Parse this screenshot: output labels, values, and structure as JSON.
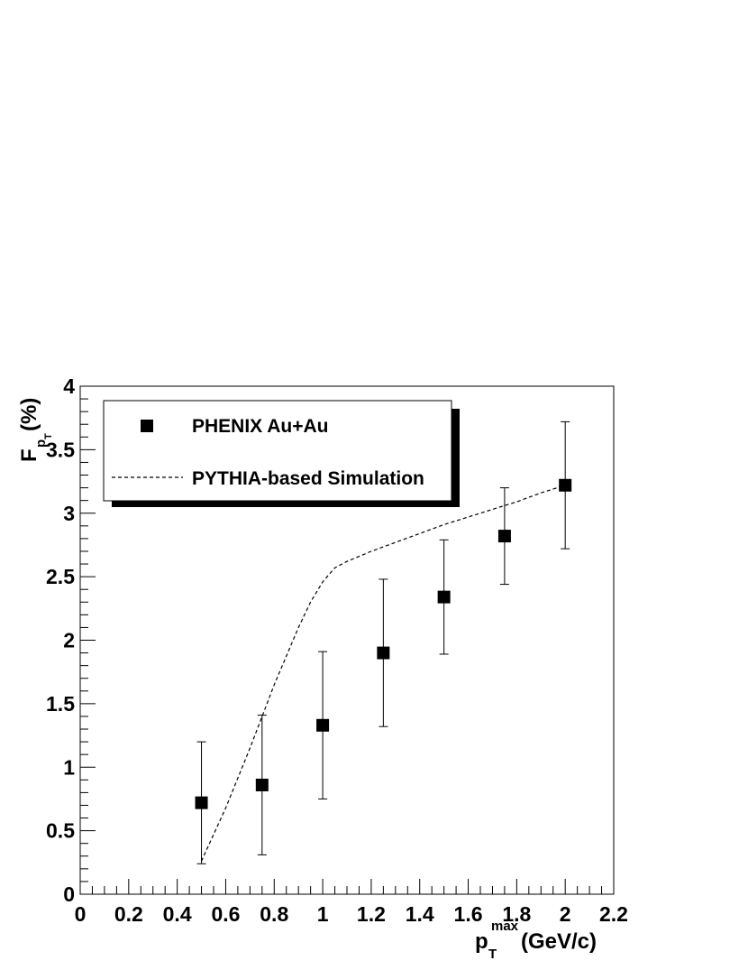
{
  "chart_data": {
    "type": "scatter",
    "x_axis": {
      "title_main": "p",
      "title_sub": "T",
      "title_sup": "max",
      "title_unit": " (GeV/c)",
      "range": [
        0,
        2.2
      ],
      "tick_labels": [
        "0",
        "0.2",
        "0.4",
        "0.6",
        "0.8",
        "1",
        "1.2",
        "1.4",
        "1.6",
        "1.8",
        "2",
        "2.2"
      ],
      "tick_values": [
        0,
        0.2,
        0.4,
        0.6,
        0.8,
        1,
        1.2,
        1.4,
        1.6,
        1.8,
        2,
        2.2
      ]
    },
    "y_axis": {
      "title_main": "F",
      "title_sub": "p",
      "title_subsub": "T",
      "title_unit": " (%)",
      "range": [
        0,
        4
      ],
      "tick_labels": [
        "0",
        "0.5",
        "1",
        "1.5",
        "2",
        "2.5",
        "3",
        "3.5",
        "4"
      ],
      "tick_values": [
        0,
        0.5,
        1,
        1.5,
        2,
        2.5,
        3,
        3.5,
        4
      ]
    },
    "series": [
      {
        "name": "PHENIX Au+Au",
        "marker": "square",
        "color": "#000000",
        "x": [
          0.5,
          0.75,
          1.0,
          1.25,
          1.5,
          1.75,
          2.0
        ],
        "y": [
          0.72,
          0.86,
          1.33,
          1.9,
          2.34,
          2.82,
          3.22
        ],
        "err": [
          0.48,
          0.55,
          0.58,
          0.58,
          0.45,
          0.38,
          0.5
        ]
      },
      {
        "name": "PYTHIA-based Simulation",
        "style": "dashed-line",
        "color": "#000000",
        "x": [
          0.5,
          0.6,
          0.7,
          0.8,
          0.9,
          0.95,
          1.0,
          1.05,
          1.1,
          1.2,
          1.3,
          1.4,
          1.5,
          1.6,
          1.7,
          1.8,
          1.9,
          2.0
        ],
        "y": [
          0.26,
          0.68,
          1.15,
          1.65,
          2.1,
          2.3,
          2.46,
          2.57,
          2.62,
          2.7,
          2.77,
          2.84,
          2.91,
          2.97,
          3.03,
          3.09,
          3.16,
          3.22
        ]
      }
    ],
    "legend": {
      "placement": "top-left",
      "entries": [
        "PHENIX Au+Au",
        "PYTHIA-based Simulation"
      ]
    },
    "grid": false
  }
}
